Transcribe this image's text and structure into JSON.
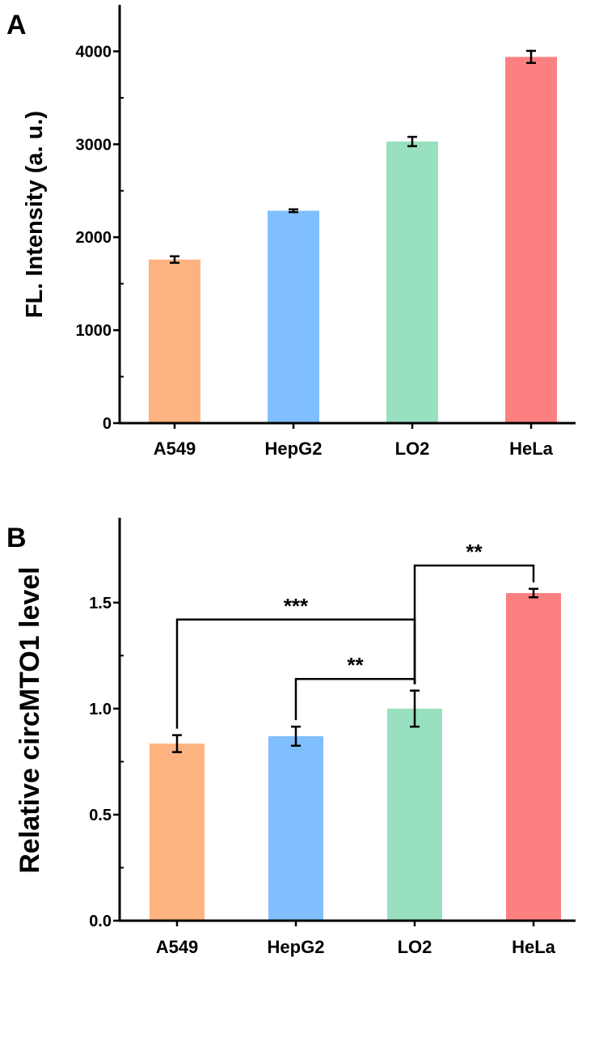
{
  "chart_data": [
    {
      "panel_label": "A",
      "type": "bar",
      "categories": [
        "A549",
        "HepG2",
        "LO2",
        "HeLa"
      ],
      "values": [
        1760,
        2285,
        3030,
        3940
      ],
      "errors": [
        35,
        15,
        50,
        65
      ],
      "colors": [
        "#FDB380",
        "#80BFFD",
        "#99E0C0",
        "#FD8080"
      ],
      "title": "",
      "xlabel": "",
      "ylabel": "FL. Intensity (a. u.)",
      "ylim": [
        0,
        4500
      ],
      "yticks": [
        0,
        1000,
        2000,
        3000,
        4000
      ],
      "ytick_labels": [
        "0",
        "1000",
        "2000",
        "3000",
        "4000"
      ],
      "grid": false
    },
    {
      "panel_label": "B",
      "type": "bar",
      "categories": [
        "A549",
        "HepG2",
        "LO2",
        "HeLa"
      ],
      "values": [
        0.835,
        0.87,
        1.0,
        1.545
      ],
      "errors": [
        0.04,
        0.045,
        0.085,
        0.02
      ],
      "colors": [
        "#FDB380",
        "#80BFFD",
        "#99E0C0",
        "#FD8080"
      ],
      "title": "",
      "xlabel": "",
      "ylabel": "Relative circMTO1 level",
      "ylim": [
        0,
        1.9
      ],
      "yticks": [
        0,
        0.5,
        1.0,
        1.5
      ],
      "ytick_labels": [
        "0.0",
        "0.5",
        "1.0",
        "1.5"
      ],
      "grid": false,
      "annotations": [
        {
          "from": "A549",
          "to": "LO2",
          "label": "***",
          "level": 1.42
        },
        {
          "from": "HepG2",
          "to": "LO2",
          "label": "**",
          "level": 1.14
        },
        {
          "from": "LO2",
          "to": "HeLa",
          "label": "**",
          "level": 1.675
        }
      ]
    }
  ]
}
